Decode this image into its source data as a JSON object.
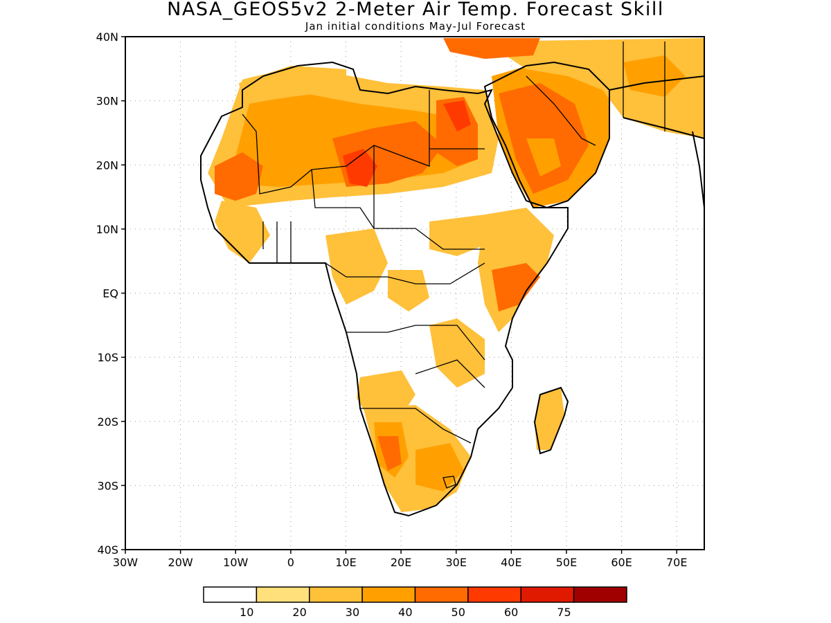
{
  "title": "NASA_GEOS5v2 2-Meter Air Temp. Forecast Skill",
  "subtitle": "Jan initial conditions  May-Jul Forecast",
  "axes": {
    "lon_ticks": [
      "30W",
      "20W",
      "10W",
      "0",
      "10E",
      "20E",
      "30E",
      "40E",
      "50E",
      "60E",
      "70E"
    ],
    "lat_ticks": [
      "40N",
      "30N",
      "20N",
      "10N",
      "EQ",
      "10S",
      "20S",
      "30S",
      "40S"
    ],
    "lon_range": [
      -30,
      75
    ],
    "lat_range": [
      -40,
      40
    ],
    "grid": "dotted"
  },
  "colorbar": {
    "labels": [
      "10",
      "20",
      "30",
      "40",
      "50",
      "60",
      "75"
    ],
    "colors": [
      "#ffffff",
      "#ffe07a",
      "#ffc03a",
      "#ffa000",
      "#ff6b00",
      "#ff3a00",
      "#e01a00",
      "#a00000"
    ]
  }
}
